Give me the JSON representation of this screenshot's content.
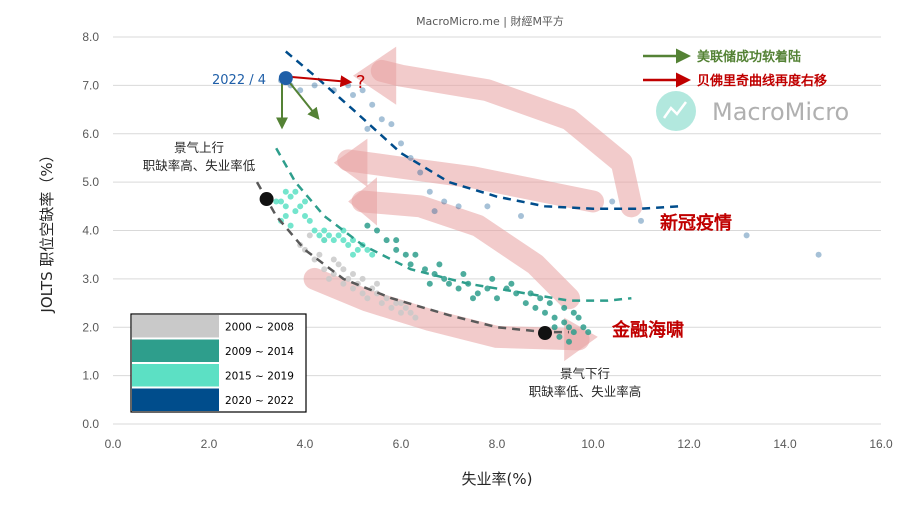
{
  "chart_data": {
    "type": "scatter",
    "title": "",
    "source": "MacroMicro.me | 財經M平方",
    "watermark": "MacroMicro",
    "xlabel": "失业率(%)",
    "ylabel": "JOLTS 职位空缺率（%）",
    "xlim": [
      0,
      16
    ],
    "ylim": [
      0,
      8
    ],
    "x_ticks": [
      "0.0",
      "2.0",
      "4.0",
      "6.0",
      "8.0",
      "10.0",
      "12.0",
      "14.0",
      "16.0"
    ],
    "y_ticks": [
      "0.0",
      "1.0",
      "2.0",
      "3.0",
      "4.0",
      "5.0",
      "6.0",
      "7.0",
      "8.0"
    ],
    "grid": "horizontal",
    "series": [
      {
        "name": "2000 ~ 2008",
        "color": "#c9c9c9",
        "points": [
          [
            4.0,
            3.6
          ],
          [
            4.2,
            3.4
          ],
          [
            4.4,
            3.2
          ],
          [
            4.5,
            3.0
          ],
          [
            4.6,
            3.1
          ],
          [
            4.7,
            3.3
          ],
          [
            4.8,
            2.9
          ],
          [
            4.9,
            3.0
          ],
          [
            5.0,
            2.8
          ],
          [
            5.1,
            2.9
          ],
          [
            5.2,
            2.7
          ],
          [
            5.3,
            2.6
          ],
          [
            5.4,
            2.8
          ],
          [
            5.5,
            2.7
          ],
          [
            5.6,
            2.5
          ],
          [
            5.7,
            2.6
          ],
          [
            5.8,
            2.4
          ],
          [
            5.9,
            2.5
          ],
          [
            6.0,
            2.3
          ],
          [
            6.1,
            2.4
          ],
          [
            6.2,
            2.3
          ],
          [
            6.3,
            2.2
          ],
          [
            4.3,
            3.5
          ],
          [
            4.6,
            3.4
          ],
          [
            5.0,
            3.1
          ],
          [
            4.4,
            3.8
          ],
          [
            4.1,
            3.9
          ],
          [
            3.9,
            3.7
          ],
          [
            5.5,
            2.9
          ],
          [
            6.0,
            2.5
          ],
          [
            4.8,
            3.2
          ],
          [
            5.2,
            3.0
          ]
        ]
      },
      {
        "name": "2009 ~ 2014",
        "color": "#2e9e8c",
        "points": [
          [
            5.5,
            4.0
          ],
          [
            5.7,
            3.8
          ],
          [
            5.9,
            3.6
          ],
          [
            6.1,
            3.5
          ],
          [
            6.2,
            3.3
          ],
          [
            6.5,
            3.2
          ],
          [
            6.7,
            3.1
          ],
          [
            6.9,
            3.0
          ],
          [
            7.0,
            2.9
          ],
          [
            7.2,
            2.8
          ],
          [
            7.4,
            2.9
          ],
          [
            7.6,
            2.7
          ],
          [
            7.8,
            2.8
          ],
          [
            8.0,
            2.6
          ],
          [
            8.2,
            2.8
          ],
          [
            8.4,
            2.7
          ],
          [
            8.6,
            2.5
          ],
          [
            8.8,
            2.4
          ],
          [
            9.0,
            2.3
          ],
          [
            9.2,
            2.2
          ],
          [
            9.4,
            2.1
          ],
          [
            9.5,
            2.0
          ],
          [
            9.6,
            1.9
          ],
          [
            9.8,
            2.0
          ],
          [
            9.9,
            1.9
          ],
          [
            9.3,
            1.8
          ],
          [
            9.5,
            1.7
          ],
          [
            8.9,
            2.6
          ],
          [
            9.1,
            2.5
          ],
          [
            9.4,
            2.4
          ],
          [
            9.6,
            2.3
          ],
          [
            8.3,
            2.9
          ],
          [
            7.9,
            3.0
          ],
          [
            7.3,
            3.1
          ],
          [
            6.8,
            3.3
          ],
          [
            6.3,
            3.5
          ],
          [
            5.9,
            3.8
          ],
          [
            5.3,
            4.1
          ],
          [
            9.7,
            2.2
          ],
          [
            9.2,
            2.0
          ],
          [
            8.7,
            2.7
          ],
          [
            7.5,
            2.6
          ],
          [
            6.6,
            2.9
          ]
        ]
      },
      {
        "name": "2015 ~ 2019",
        "color": "#5ce0c4",
        "points": [
          [
            3.5,
            4.6
          ],
          [
            3.6,
            4.5
          ],
          [
            3.7,
            4.7
          ],
          [
            3.8,
            4.4
          ],
          [
            3.9,
            4.5
          ],
          [
            4.0,
            4.3
          ],
          [
            3.6,
            4.3
          ],
          [
            3.5,
            4.2
          ],
          [
            3.7,
            4.1
          ],
          [
            3.4,
            4.6
          ],
          [
            3.6,
            4.8
          ],
          [
            4.1,
            4.2
          ],
          [
            4.2,
            4.0
          ],
          [
            4.3,
            3.9
          ],
          [
            4.4,
            4.0
          ],
          [
            4.5,
            3.9
          ],
          [
            4.6,
            3.8
          ],
          [
            4.7,
            3.9
          ],
          [
            4.8,
            3.8
          ],
          [
            4.9,
            3.7
          ],
          [
            5.0,
            3.8
          ],
          [
            5.1,
            3.6
          ],
          [
            5.2,
            3.7
          ],
          [
            5.3,
            3.6
          ],
          [
            5.4,
            3.5
          ],
          [
            4.0,
            4.6
          ],
          [
            4.4,
            3.8
          ],
          [
            4.8,
            4.0
          ],
          [
            3.8,
            4.8
          ],
          [
            5.0,
            3.5
          ]
        ]
      },
      {
        "name": "2020 ~ 2022",
        "color": "#004d8c",
        "points": [
          [
            3.5,
            7.1
          ],
          [
            3.7,
            7.0
          ],
          [
            3.9,
            6.9
          ],
          [
            4.2,
            7.0
          ],
          [
            4.6,
            6.9
          ],
          [
            5.0,
            6.8
          ],
          [
            5.2,
            6.9
          ],
          [
            5.4,
            6.6
          ],
          [
            5.6,
            6.3
          ],
          [
            5.8,
            6.2
          ],
          [
            6.0,
            5.8
          ],
          [
            6.2,
            5.5
          ],
          [
            6.4,
            5.2
          ],
          [
            6.6,
            4.8
          ],
          [
            6.9,
            4.6
          ],
          [
            7.2,
            4.5
          ],
          [
            7.8,
            4.5
          ],
          [
            8.5,
            4.3
          ],
          [
            10.4,
            4.6
          ],
          [
            11.0,
            4.2
          ],
          [
            13.2,
            3.9
          ],
          [
            14.7,
            3.5
          ],
          [
            4.9,
            7.0
          ],
          [
            5.3,
            6.1
          ],
          [
            6.7,
            4.4
          ]
        ]
      }
    ],
    "trendlines": [
      {
        "name": "2020 ~ 2022",
        "color": "#004d8c",
        "points": [
          [
            3.6,
            7.7
          ],
          [
            4.2,
            7.2
          ],
          [
            5.0,
            6.5
          ],
          [
            6.0,
            5.6
          ],
          [
            7.0,
            5.0
          ],
          [
            8.0,
            4.7
          ],
          [
            9.0,
            4.5
          ],
          [
            10.0,
            4.45
          ],
          [
            11.0,
            4.45
          ],
          [
            11.8,
            4.5
          ]
        ]
      },
      {
        "name": "2015 ~ 2019",
        "color": "#2e9e8c",
        "points": [
          [
            3.4,
            5.7
          ],
          [
            3.8,
            5.0
          ],
          [
            4.4,
            4.3
          ],
          [
            5.2,
            3.7
          ],
          [
            6.2,
            3.2
          ],
          [
            7.4,
            2.9
          ],
          [
            8.6,
            2.7
          ],
          [
            9.5,
            2.55
          ],
          [
            10.3,
            2.55
          ],
          [
            10.8,
            2.6
          ]
        ]
      },
      {
        "name": "2000 ~ 2008",
        "color": "#595959",
        "points": [
          [
            3.0,
            5.0
          ],
          [
            3.4,
            4.3
          ],
          [
            4.0,
            3.6
          ],
          [
            4.8,
            3.0
          ],
          [
            5.8,
            2.6
          ],
          [
            7.0,
            2.25
          ],
          [
            8.0,
            2.0
          ],
          [
            9.0,
            1.9
          ],
          [
            9.5,
            1.9
          ]
        ]
      }
    ],
    "highlight_points": [
      {
        "label": "2022 / 4",
        "x": 3.6,
        "y": 7.15,
        "color": "#1f5fa8"
      },
      {
        "label": "",
        "x": 3.2,
        "y": 4.65,
        "color": "#111111"
      },
      {
        "label": "",
        "x": 9.0,
        "y": 1.88,
        "color": "#111111"
      }
    ],
    "annotations": {
      "question": "?",
      "covid": "新冠疫情",
      "crisis": "金融海啸",
      "upturn_title": "景气上行",
      "upturn_sub": "职缺率高、失业率低",
      "downturn_title": "景气下行",
      "downturn_sub": "职缺率低、失业率高"
    },
    "arrow_legend": [
      {
        "label": "美联储成功软着陆",
        "color": "#548235"
      },
      {
        "label": "贝佛里奇曲线再度右移",
        "color": "#c00000"
      }
    ],
    "legend_box": [
      {
        "label": "2000 ~ 2008",
        "color": "#c9c9c9"
      },
      {
        "label": "2009 ~ 2014",
        "color": "#2e9e8c"
      },
      {
        "label": "2015 ~ 2019",
        "color": "#5ce0c4"
      },
      {
        "label": "2020 ~ 2022",
        "color": "#004d8c"
      }
    ]
  }
}
